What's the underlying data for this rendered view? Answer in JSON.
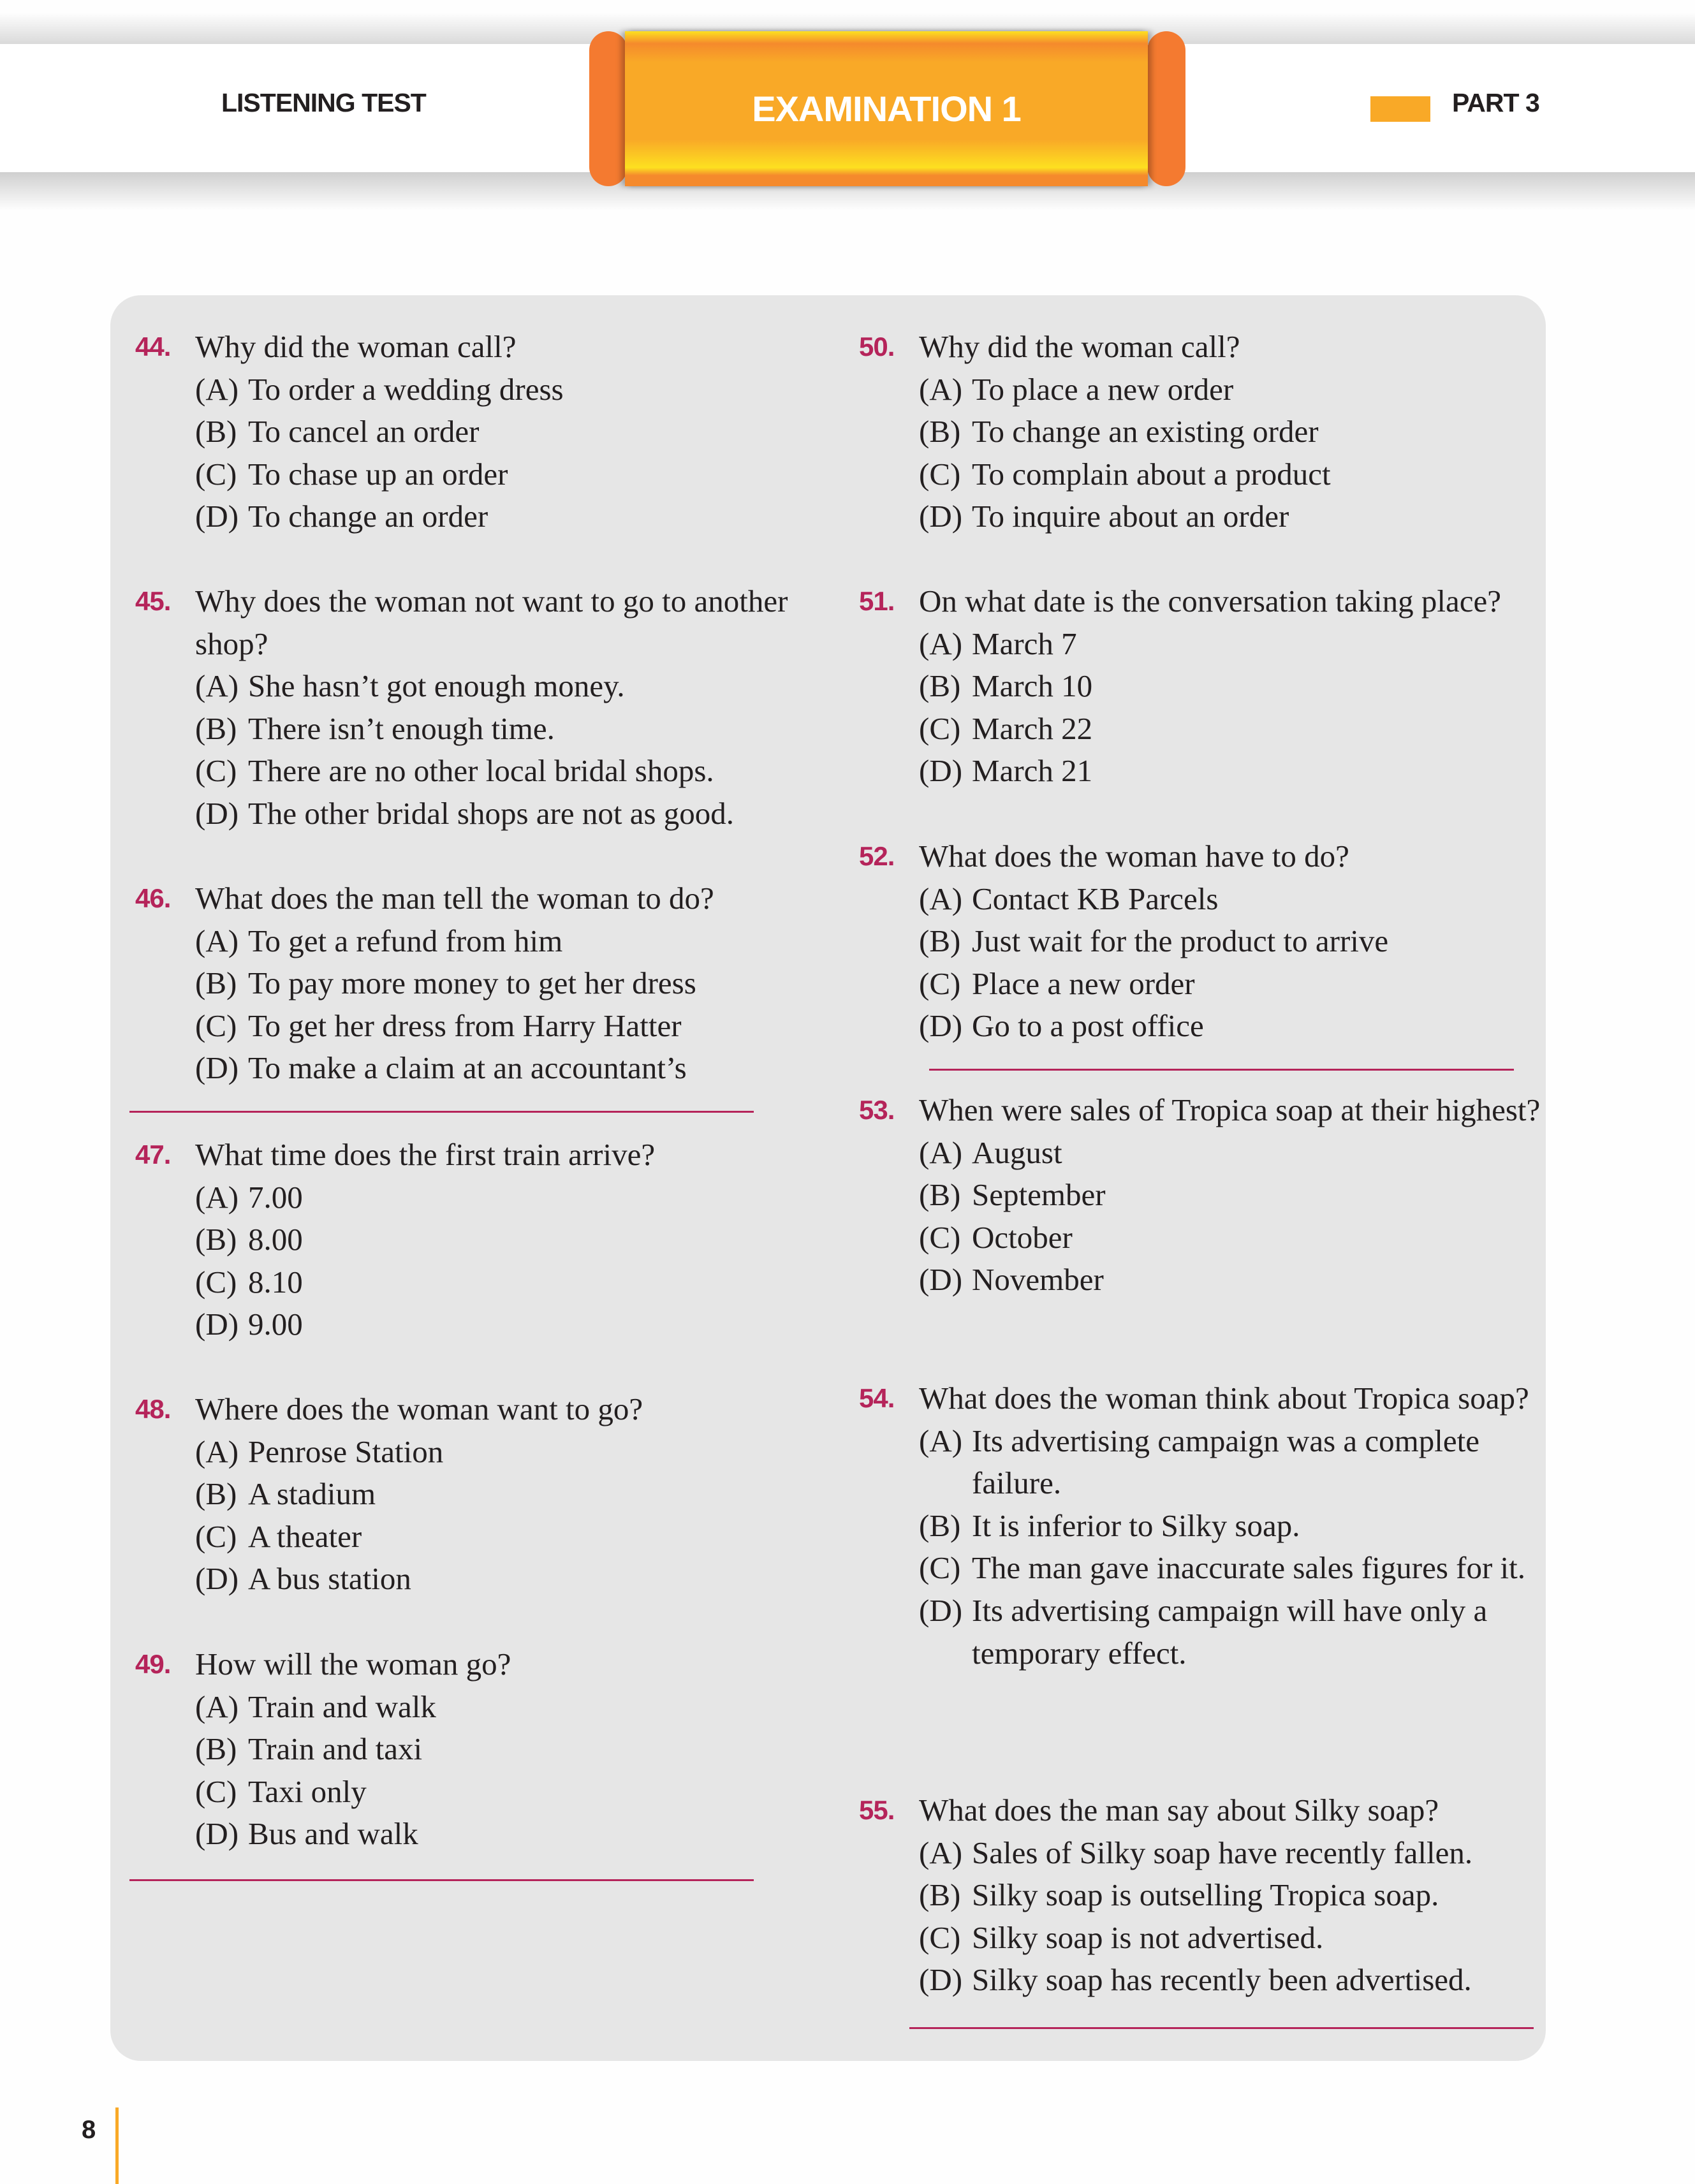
{
  "header": {
    "left": "LISTENING TEST",
    "center": "EXAMINATION 1",
    "right": "PART 3"
  },
  "colors": {
    "accent": "#f9a927",
    "number": "#b5245a",
    "panel": "#e6e6e6"
  },
  "page_number": "8",
  "questions": [
    {
      "num": "44.",
      "text": "Why did the woman call?",
      "options": [
        [
          "(A)",
          "To order a wedding dress"
        ],
        [
          "(B)",
          "To cancel an order"
        ],
        [
          "(C)",
          "To chase up an order"
        ],
        [
          "(D)",
          "To change an order"
        ]
      ]
    },
    {
      "num": "45.",
      "text": "Why does the woman not want to go to another shop?",
      "options": [
        [
          "(A)",
          "She hasn’t got enough money."
        ],
        [
          "(B)",
          "There isn’t enough time."
        ],
        [
          "(C)",
          "There are no other local bridal shops."
        ],
        [
          "(D)",
          "The other bridal shops are not as good."
        ]
      ]
    },
    {
      "num": "46.",
      "text": "What does the man tell the woman to do?",
      "options": [
        [
          "(A)",
          "To get a refund from him"
        ],
        [
          "(B)",
          "To pay more money to get her dress"
        ],
        [
          "(C)",
          "To get her dress from Harry Hatter"
        ],
        [
          "(D)",
          "To make a claim at an accountant’s"
        ]
      ]
    },
    {
      "num": "47.",
      "text": "What time does the first train arrive?",
      "options": [
        [
          "(A)",
          "7.00"
        ],
        [
          "(B)",
          "8.00"
        ],
        [
          "(C)",
          "8.10"
        ],
        [
          "(D)",
          "9.00"
        ]
      ]
    },
    {
      "num": "48.",
      "text": "Where does the woman want to go?",
      "options": [
        [
          "(A)",
          "Penrose Station"
        ],
        [
          "(B)",
          "A stadium"
        ],
        [
          "(C)",
          "A theater"
        ],
        [
          "(D)",
          "A bus station"
        ]
      ]
    },
    {
      "num": "49.",
      "text": "How will the woman go?",
      "options": [
        [
          "(A)",
          "Train and walk"
        ],
        [
          "(B)",
          "Train and taxi"
        ],
        [
          "(C)",
          "Taxi only"
        ],
        [
          "(D)",
          "Bus and walk"
        ]
      ]
    },
    {
      "num": "50.",
      "text": "Why did the woman call?",
      "options": [
        [
          "(A)",
          "To place a new order"
        ],
        [
          "(B)",
          "To change an existing order"
        ],
        [
          "(C)",
          "To complain about a product"
        ],
        [
          "(D)",
          "To inquire about an order"
        ]
      ]
    },
    {
      "num": "51.",
      "text": "On what date is the conversation taking place?",
      "options": [
        [
          "(A)",
          "March 7"
        ],
        [
          "(B)",
          "March 10"
        ],
        [
          "(C)",
          "March 22"
        ],
        [
          "(D)",
          "March 21"
        ]
      ]
    },
    {
      "num": "52.",
      "text": "What does the woman have to do?",
      "options": [
        [
          "(A)",
          "Contact KB Parcels"
        ],
        [
          "(B)",
          "Just wait for the product to arrive"
        ],
        [
          "(C)",
          "Place a new order"
        ],
        [
          "(D)",
          "Go to a post office"
        ]
      ]
    },
    {
      "num": "53.",
      "text": "When were sales of Tropica soap at their highest?",
      "options": [
        [
          "(A)",
          "August"
        ],
        [
          "(B)",
          "September"
        ],
        [
          "(C)",
          "October"
        ],
        [
          "(D)",
          "November"
        ]
      ]
    },
    {
      "num": "54.",
      "text": "What does the woman think about Tropica soap?",
      "options": [
        [
          "(A)",
          "Its advertising campaign was a complete failure."
        ],
        [
          "(B)",
          "It is inferior to Silky soap."
        ],
        [
          "(C)",
          "The man gave inaccurate sales figures for it."
        ],
        [
          "(D)",
          "Its advertising campaign will have only a temporary effect."
        ]
      ]
    },
    {
      "num": "55.",
      "text": "What does the man say about Silky soap?",
      "options": [
        [
          "(A)",
          "Sales of Silky soap have recently fallen."
        ],
        [
          "(B)",
          "Silky soap is outselling Tropica soap."
        ],
        [
          "(C)",
          "Silky soap is not advertised."
        ],
        [
          "(D)",
          "Silky soap has recently been advertised."
        ]
      ]
    }
  ]
}
